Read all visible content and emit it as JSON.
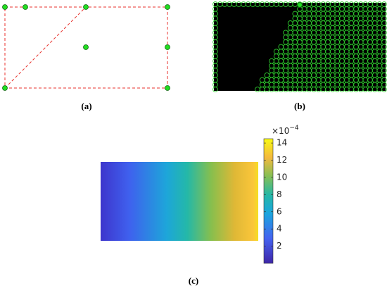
{
  "figure": {
    "captions": [
      "(a)",
      "(b)",
      "(c)"
    ],
    "colorbar": {
      "lim": [
        0,
        14.5
      ],
      "ticks": [
        2,
        4,
        6,
        8,
        10,
        12,
        14
      ],
      "multiplier": {
        "base": "×10",
        "exponent": "−4"
      }
    }
  }
}
